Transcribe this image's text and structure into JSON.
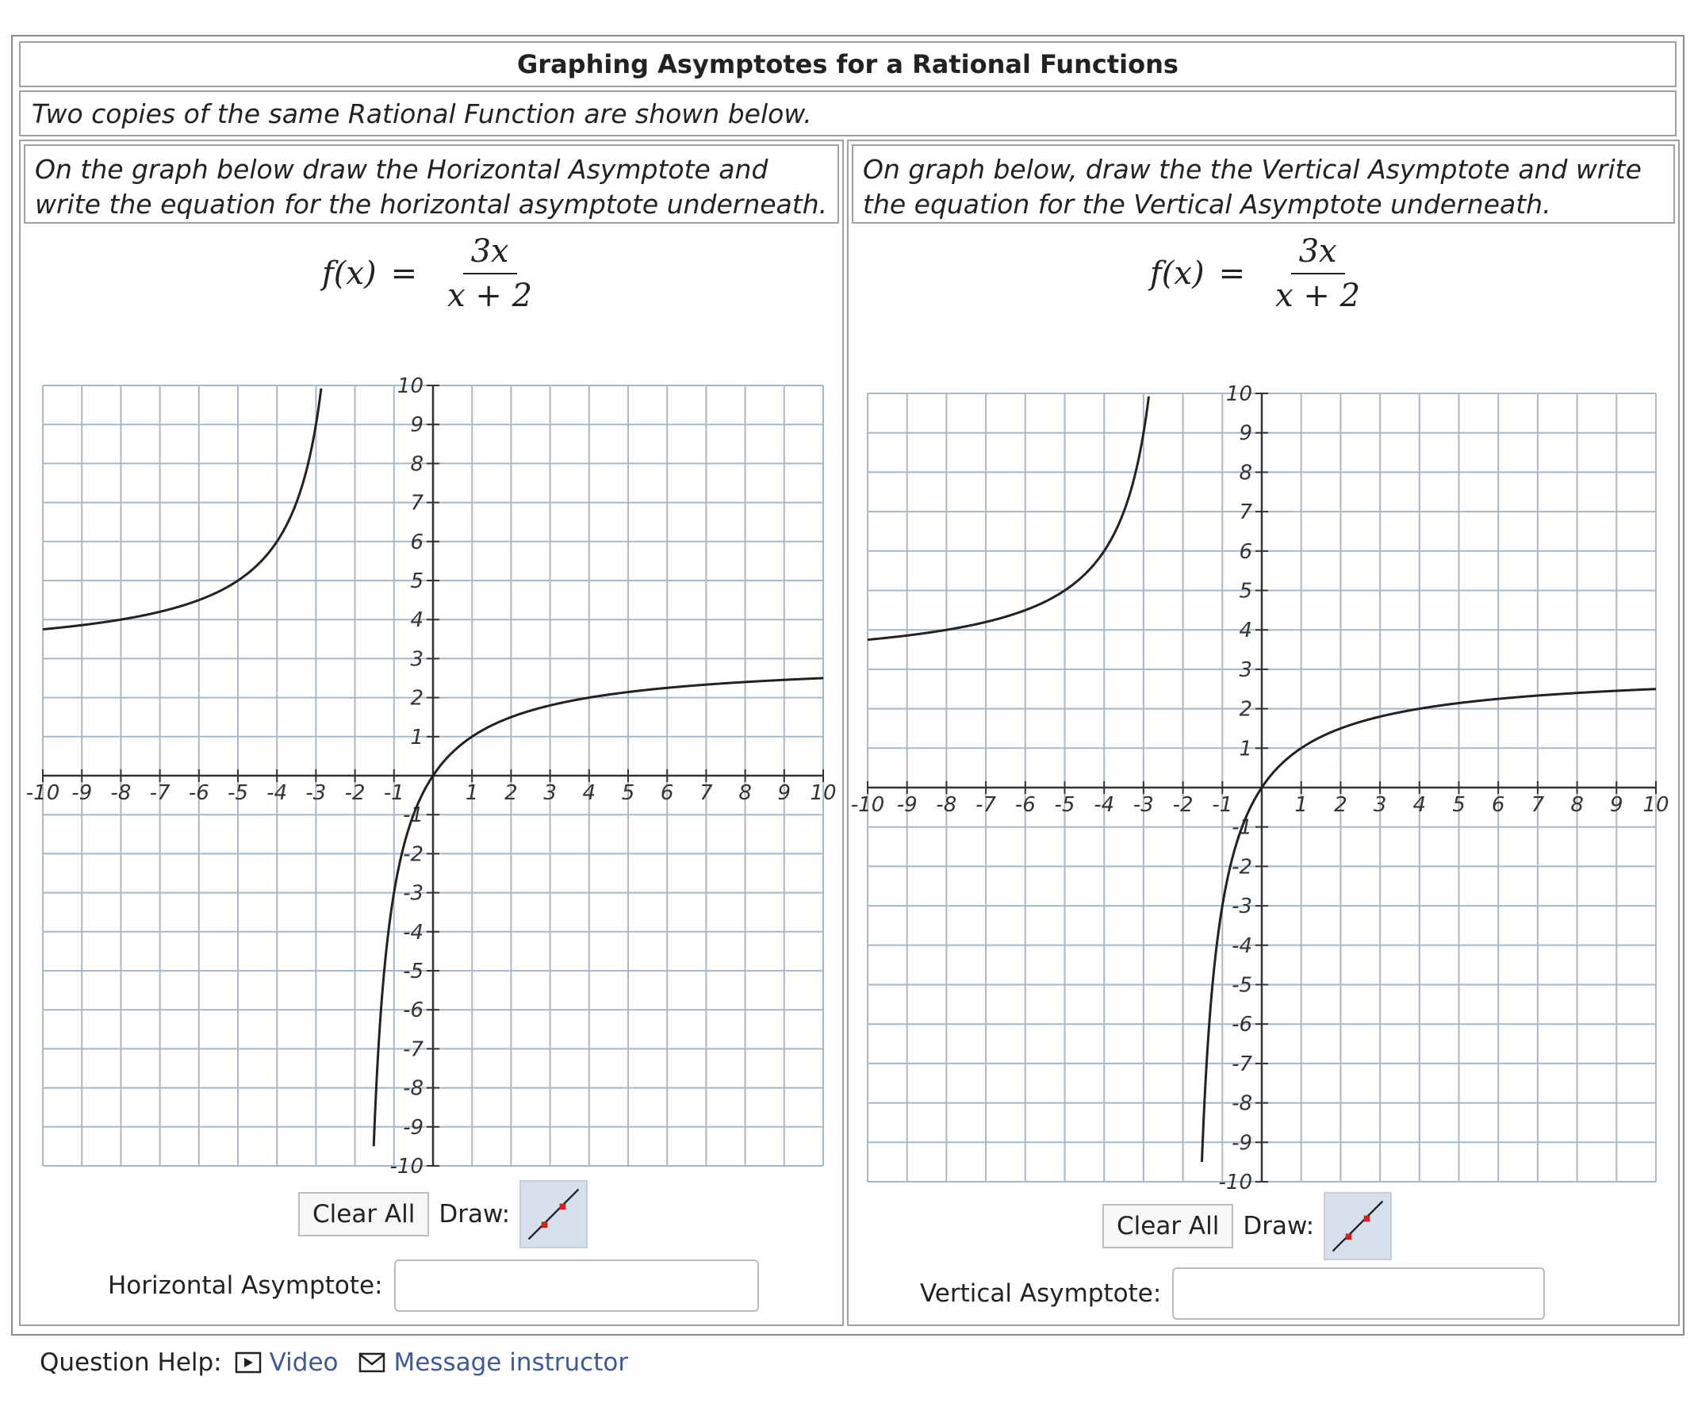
{
  "title": "Graphing Asymptotes for a Rational Functions",
  "intro": "Two copies of the same Rational Function are shown below.",
  "left_panel": {
    "instruction": "On the graph below draw the Horizontal Asymptote and write the equation for the horizontal asymptote underneath.",
    "formula": {
      "lhs": "f(x)",
      "eq": "=",
      "numerator": "3x",
      "denominator": "x + 2"
    },
    "clear_label": "Clear All",
    "draw_label": "Draw:",
    "answer_label": "Horizontal Asymptote:",
    "answer_value": ""
  },
  "right_panel": {
    "instruction": "On graph below, draw the the Vertical Asymptote and write the equation for the Vertical Asymptote underneath.",
    "formula": {
      "lhs": "f(x)",
      "eq": "=",
      "numerator": "3x",
      "denominator": "x + 2"
    },
    "clear_label": "Clear All",
    "draw_label": "Draw:",
    "answer_label": "Vertical Asymptote:",
    "answer_value": ""
  },
  "graph": {
    "xmin": -10,
    "xmax": 10,
    "ymin": -10,
    "ymax": 10,
    "x_ticks": [
      -10,
      -9,
      -8,
      -7,
      -6,
      -5,
      -4,
      -3,
      -2,
      -1,
      1,
      2,
      3,
      4,
      5,
      6,
      7,
      8,
      9,
      10
    ],
    "y_ticks": [
      -10,
      -9,
      -8,
      -7,
      -6,
      -5,
      -4,
      -3,
      -2,
      -1,
      1,
      2,
      3,
      4,
      5,
      6,
      7,
      8,
      9,
      10
    ],
    "function": "3x/(x+2)",
    "curve_color": "#222222",
    "grid_color": "#a9b8c6"
  },
  "help": {
    "label": "Question Help:",
    "video": "Video",
    "message": "Message instructor"
  },
  "colors": {
    "link": "#3d5a96",
    "tool_bg": "#d5e0ec",
    "tool_red": "#d42020"
  }
}
